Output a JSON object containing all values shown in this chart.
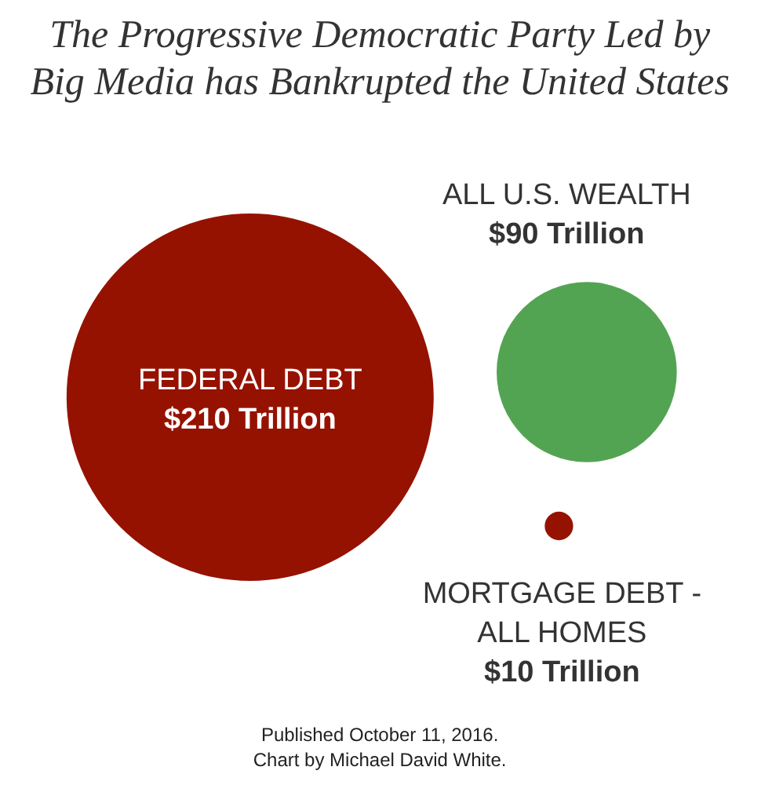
{
  "chart_data": {
    "type": "other",
    "title": "The Progressive Democratic Party Led by Big Media has Bankrupted the United States",
    "categories": [
      "FEDERAL DEBT",
      "ALL U.S. WEALTH",
      "MORTGAGE DEBT - ALL HOMES"
    ],
    "values": [
      210,
      90,
      10
    ],
    "value_labels": [
      "$210 Trillion",
      "$90 Trillion",
      "$10 Trillion"
    ],
    "colors": [
      "#961200",
      "#53a452",
      "#961200"
    ],
    "annotations": [
      "Published October 11, 2016.",
      "Chart by Michael David White."
    ]
  }
}
